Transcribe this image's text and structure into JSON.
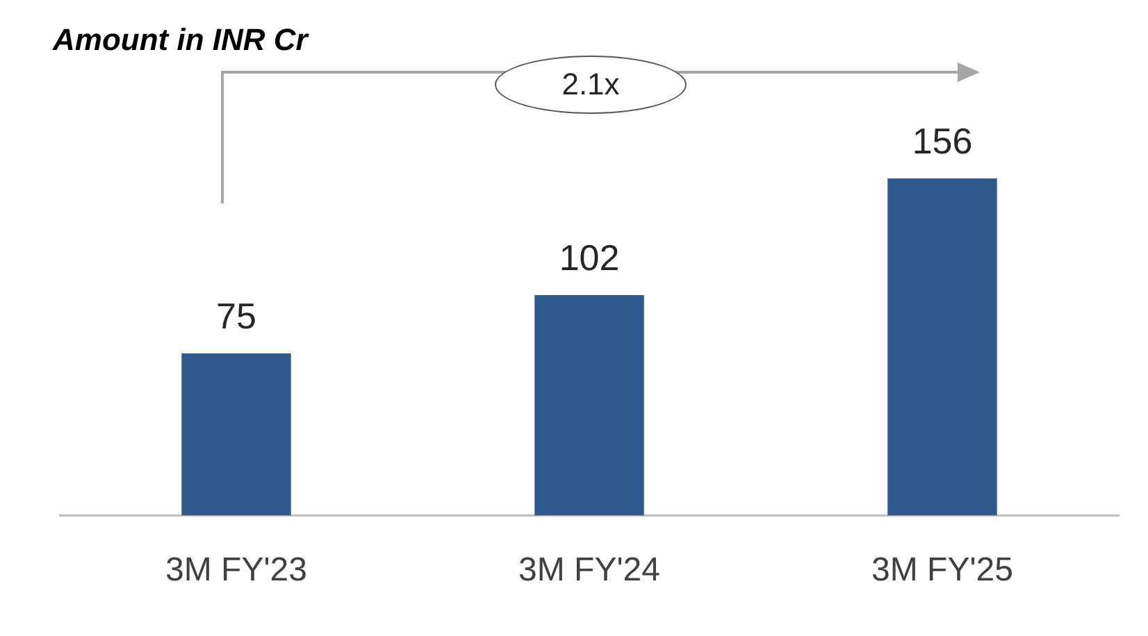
{
  "chart_data": {
    "type": "bar",
    "title": "Amount in INR Cr",
    "categories": [
      "3M FY'23",
      "3M FY'24",
      "3M FY'25"
    ],
    "values": [
      75,
      102,
      156
    ],
    "color": "#2f5a8e",
    "data_labels": true,
    "grid": false,
    "legend": false,
    "annotations": [
      "2.1x"
    ]
  }
}
